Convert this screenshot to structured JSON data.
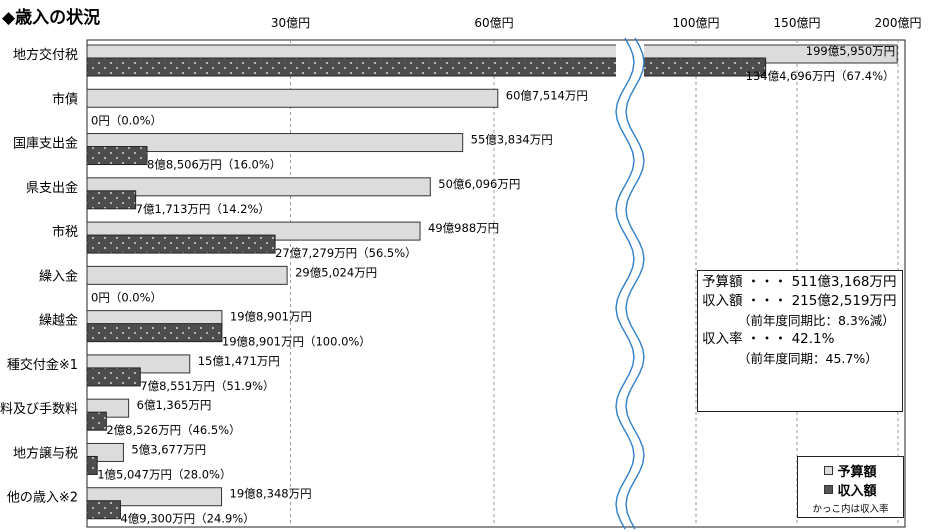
{
  "chart_data": {
    "type": "bar",
    "orientation": "horizontal",
    "title": "◆歳入の状況",
    "axis": {
      "tick_labels": [
        "30億円",
        "60億円",
        "100億円",
        "150億円",
        "200億円"
      ],
      "tick_values": [
        30,
        60,
        100,
        150,
        200
      ],
      "unit": "億円",
      "broken_axis": true,
      "break_between": [
        60,
        100
      ],
      "grid": "dashed vertical"
    },
    "categories": [
      "地方交付税",
      "市債",
      "国庫支出金",
      "県支出金",
      "市税",
      "繰入金",
      "繰越金",
      "種交付金※1",
      "料及び手数料",
      "地方譲与税",
      "他の歳入※2"
    ],
    "series": [
      {
        "name": "予算額",
        "values": [
          199.595,
          60.7514,
          55.3834,
          50.6096,
          49.0988,
          29.5024,
          19.8901,
          15.1471,
          6.1365,
          5.3677,
          19.8348
        ],
        "labels": [
          "199億5,950万円",
          "60億7,514万円",
          "55億3,834万円",
          "50億6,096万円",
          "49億988万円",
          "29億5,024万円",
          "19億8,901万円",
          "15億1,471万円",
          "6億1,365万円",
          "5億3,677万円",
          "19億8,348万円"
        ]
      },
      {
        "name": "収入額",
        "values": [
          134.4696,
          0,
          8.8506,
          7.1713,
          27.7279,
          0,
          19.8901,
          7.8551,
          2.8526,
          1.5047,
          4.93
        ],
        "labels": [
          "134億4,696万円（67.4%）",
          "0円（0.0%）",
          "8億8,506万円（16.0%）",
          "7億1,713万円（14.2%）",
          "27億7,279万円（56.5%）",
          "0円（0.0%）",
          "19億8,901万円（100.0%）",
          "7億8,551万円（51.9%）",
          "2億8,526万円（46.5%）",
          "1億5,047万円（28.0%）",
          "4億9,300万円（24.9%）"
        ]
      }
    ],
    "legend": {
      "placement": "bottom-right",
      "items": [
        "予算額",
        "収入額"
      ],
      "note": "かっこ内は収入率"
    },
    "summary": {
      "line1": "予算額 ・・・ 511億3,168万円",
      "line2": "収入額 ・・・ 215億2,519万円",
      "line3": "（前年度同期比：8.3%減）",
      "line4": "収入率 ・・・ 42.1%",
      "line5": "（前年度同期：45.7%）"
    },
    "colors": {
      "budget": "#dcdcdc",
      "revenue": "#555555",
      "break_line": "#2f7fc9"
    }
  }
}
